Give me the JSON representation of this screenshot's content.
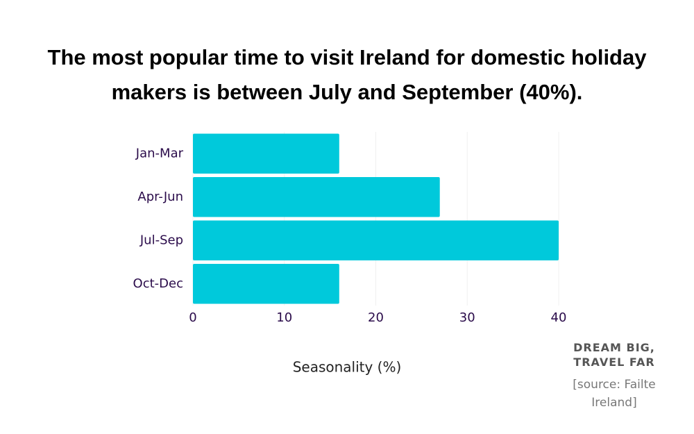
{
  "chart_data": {
    "type": "bar",
    "orientation": "horizontal",
    "title": "The most popular time to visit Ireland for domestic holiday makers is between July and September (40%).",
    "categories": [
      "Jan-Mar",
      "Apr-Jun",
      "Jul-Sep",
      "Oct-Dec"
    ],
    "values": [
      16,
      27,
      40,
      16
    ],
    "color": "#00c9db",
    "xlim": [
      0,
      40
    ],
    "xticks": [
      0,
      10,
      20,
      30,
      40
    ],
    "grid": true,
    "xlabel": "Seasonality (%)",
    "tagline": "DREAM BIG, TRAVEL FAR",
    "source": "[source: Failte Ireland]"
  }
}
